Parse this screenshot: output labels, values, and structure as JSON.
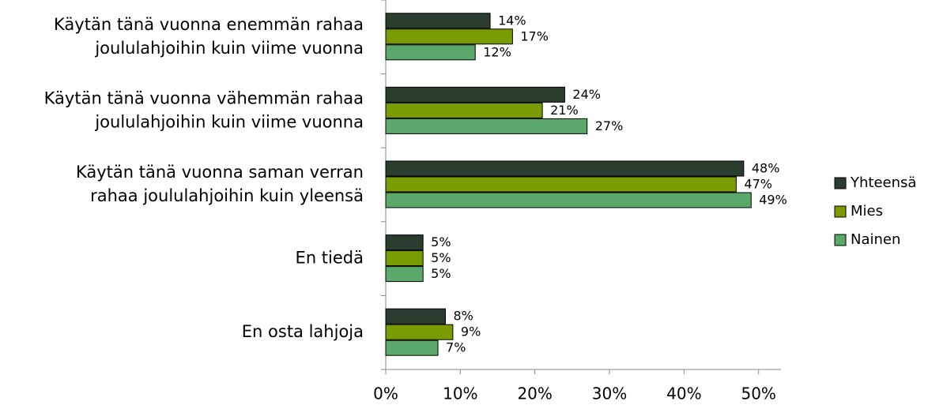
{
  "chart_data": {
    "type": "bar",
    "orientation": "horizontal",
    "categories": [
      [
        "Käytän tänä vuonna enemmän rahaa",
        "joululahjoihin kuin viime vuonna"
      ],
      [
        "Käytän tänä vuonna vähemmän rahaa",
        "joululahjoihin kuin viime vuonna"
      ],
      [
        "Käytän tänä vuonna saman verran",
        "rahaa joululahjoihin kuin yleensä"
      ],
      [
        "En tiedä"
      ],
      [
        "En osta lahjoja"
      ]
    ],
    "series": [
      {
        "name": "Yhteensä",
        "color": "#2b3d2e",
        "values": [
          14,
          24,
          48,
          5,
          8
        ],
        "value_labels": [
          "14%",
          "24%",
          "48%",
          "5%",
          "8%"
        ]
      },
      {
        "name": "Mies",
        "color": "#7a9c02",
        "values": [
          17,
          21,
          47,
          5,
          9
        ],
        "value_labels": [
          "17%",
          "21%",
          "47%",
          "5%",
          "9%"
        ]
      },
      {
        "name": "Nainen",
        "color": "#5aa86a",
        "values": [
          12,
          27,
          49,
          5,
          7
        ],
        "value_labels": [
          "12%",
          "27%",
          "49%",
          "5%",
          "7%"
        ]
      }
    ],
    "xlim": [
      0,
      53
    ],
    "xticks": [
      {
        "value": 0,
        "label": "0%"
      },
      {
        "value": 10,
        "label": "10%"
      },
      {
        "value": 20,
        "label": "20%"
      },
      {
        "value": 30,
        "label": "30%"
      },
      {
        "value": 40,
        "label": "40%"
      },
      {
        "value": 50,
        "label": "50%"
      }
    ],
    "legend": "right"
  }
}
